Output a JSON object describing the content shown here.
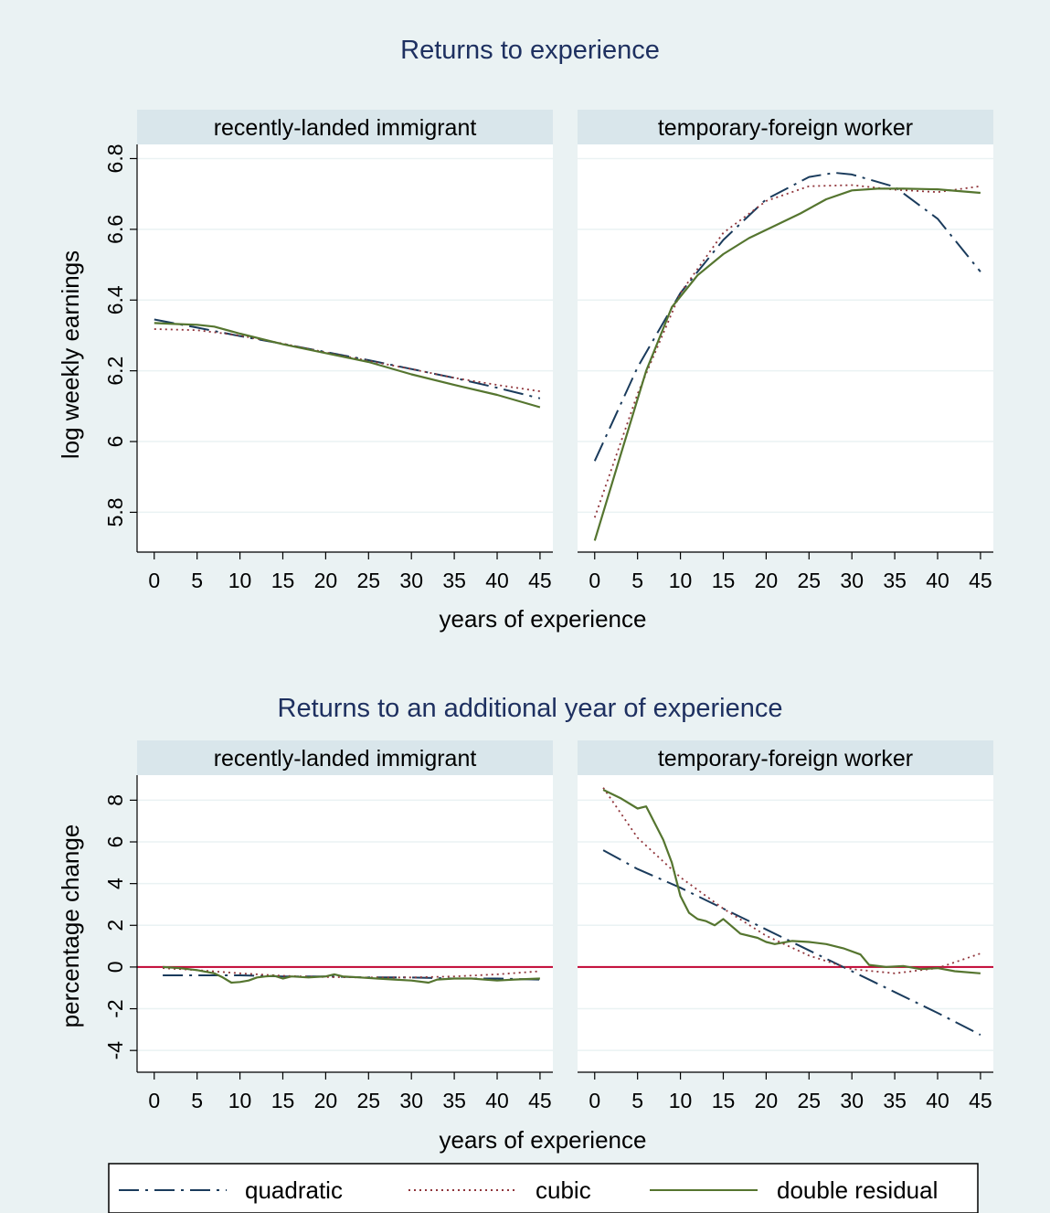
{
  "colors": {
    "background": "#eaf2f3",
    "plot_bg": "#ffffff",
    "strip_bg": "#d9e6eb",
    "grid": "#eaf2f3",
    "title_text": "#1e3060",
    "quadratic": "#1a3b5c",
    "cubic": "#90353b",
    "double_residual": "#55752f",
    "zero_line": "#c10534"
  },
  "legend": {
    "quadratic": "quadratic",
    "cubic": "cubic",
    "double_residual": "double residual"
  },
  "chart_data": [
    {
      "type": "line",
      "title": "Returns to experience",
      "ylabel": "log weekly earnings",
      "xlabel": "years of experience",
      "x_ticks": [
        0,
        5,
        10,
        15,
        20,
        25,
        30,
        35,
        40,
        45
      ],
      "y_ticks": [
        5.8,
        6,
        6.2,
        6.4,
        6.6,
        6.8
      ],
      "y_tick_labels": [
        "5.8",
        "6",
        "6.2",
        "6.4",
        "6.6",
        "6.8"
      ],
      "xlim": [
        -2,
        46.5
      ],
      "ylim": [
        5.69,
        6.84
      ],
      "grid": true,
      "panels": [
        {
          "name": "recently-landed immigrant",
          "series": [
            {
              "name": "quadratic",
              "x": [
                0,
                5,
                10,
                15,
                20,
                25,
                30,
                35,
                40,
                45
              ],
              "y": [
                6.345,
                6.322,
                6.298,
                6.276,
                6.253,
                6.23,
                6.205,
                6.18,
                6.152,
                6.122
              ]
            },
            {
              "name": "cubic",
              "x": [
                0,
                5,
                10,
                15,
                20,
                25,
                30,
                35,
                40,
                45
              ],
              "y": [
                6.318,
                6.315,
                6.3,
                6.277,
                6.252,
                6.228,
                6.205,
                6.18,
                6.16,
                6.142
              ]
            },
            {
              "name": "double residual",
              "x": [
                0,
                3,
                5,
                7,
                10,
                15,
                20,
                25,
                30,
                35,
                40,
                45
              ],
              "y": [
                6.335,
                6.332,
                6.33,
                6.325,
                6.305,
                6.275,
                6.25,
                6.225,
                6.19,
                6.16,
                6.132,
                6.097
              ]
            }
          ]
        },
        {
          "name": "temporary-foreign worker",
          "series": [
            {
              "name": "quadratic",
              "x": [
                0,
                5,
                10,
                15,
                20,
                25,
                28,
                30,
                35,
                40,
                45
              ],
              "y": [
                5.945,
                6.21,
                6.42,
                6.57,
                6.685,
                6.748,
                6.76,
                6.755,
                6.72,
                6.63,
                6.48
              ]
            },
            {
              "name": "cubic",
              "x": [
                0,
                5,
                10,
                15,
                20,
                25,
                30,
                35,
                40,
                45
              ],
              "y": [
                5.785,
                6.135,
                6.42,
                6.59,
                6.68,
                6.722,
                6.725,
                6.712,
                6.705,
                6.722
              ]
            },
            {
              "name": "double residual",
              "x": [
                0,
                3,
                6,
                9,
                12,
                15,
                18,
                21,
                24,
                27,
                30,
                33,
                36,
                40,
                45
              ],
              "y": [
                5.72,
                5.96,
                6.2,
                6.38,
                6.47,
                6.53,
                6.575,
                6.61,
                6.645,
                6.685,
                6.71,
                6.715,
                6.715,
                6.713,
                6.703
              ]
            }
          ]
        }
      ]
    },
    {
      "type": "line",
      "title": "Returns to an additional year of experience",
      "ylabel": "percentage change",
      "xlabel": "years of experience",
      "x_ticks": [
        0,
        5,
        10,
        15,
        20,
        25,
        30,
        35,
        40,
        45
      ],
      "y_ticks": [
        -4,
        -2,
        0,
        2,
        4,
        6,
        8
      ],
      "y_tick_labels": [
        "-4",
        "-2",
        "0",
        "2",
        "4",
        "6",
        "8"
      ],
      "xlim": [
        -2,
        46.5
      ],
      "ylim": [
        -5,
        9.2
      ],
      "grid": true,
      "reference_line": 0,
      "panels": [
        {
          "name": "recently-landed immigrant",
          "series": [
            {
              "name": "quadratic",
              "x": [
                1,
                5,
                10,
                15,
                20,
                25,
                30,
                35,
                40,
                45
              ],
              "y": [
                -0.4,
                -0.4,
                -0.4,
                -0.45,
                -0.45,
                -0.5,
                -0.5,
                -0.55,
                -0.55,
                -0.6
              ]
            },
            {
              "name": "cubic",
              "x": [
                1,
                5,
                10,
                15,
                20,
                25,
                30,
                35,
                40,
                45
              ],
              "y": [
                -0.05,
                -0.15,
                -0.3,
                -0.42,
                -0.48,
                -0.5,
                -0.5,
                -0.45,
                -0.35,
                -0.2
              ]
            },
            {
              "name": "double residual",
              "x": [
                1,
                3,
                5,
                7,
                8,
                9,
                10,
                11,
                12,
                13,
                14,
                15,
                16,
                18,
                20,
                21,
                22,
                24,
                26,
                28,
                30,
                32,
                33,
                35,
                37,
                40,
                42,
                45
              ],
              "y": [
                0,
                -0.05,
                -0.15,
                -0.3,
                -0.5,
                -0.75,
                -0.72,
                -0.65,
                -0.5,
                -0.45,
                -0.42,
                -0.55,
                -0.45,
                -0.5,
                -0.45,
                -0.35,
                -0.45,
                -0.5,
                -0.55,
                -0.6,
                -0.65,
                -0.75,
                -0.6,
                -0.55,
                -0.55,
                -0.65,
                -0.6,
                -0.55
              ]
            }
          ]
        },
        {
          "name": "temporary-foreign worker",
          "series": [
            {
              "name": "quadratic",
              "x": [
                1,
                5,
                10,
                15,
                20,
                25,
                30,
                35,
                40,
                45
              ],
              "y": [
                5.6,
                4.7,
                3.8,
                2.8,
                1.8,
                0.8,
                -0.2,
                -1.2,
                -2.2,
                -3.25
              ]
            },
            {
              "name": "cubic",
              "x": [
                1,
                5,
                10,
                15,
                20,
                25,
                30,
                35,
                40,
                45
              ],
              "y": [
                8.6,
                6.2,
                4.3,
                2.8,
                1.5,
                0.55,
                -0.1,
                -0.3,
                -0.05,
                0.65
              ]
            },
            {
              "name": "double residual",
              "x": [
                1,
                3,
                5,
                6,
                8,
                9,
                10,
                11,
                12,
                13,
                14,
                15,
                17,
                19,
                20,
                21,
                23,
                25,
                27,
                29,
                31,
                32,
                34,
                36,
                38,
                40,
                42,
                45
              ],
              "y": [
                8.5,
                8.1,
                7.6,
                7.7,
                6.1,
                5.0,
                3.4,
                2.6,
                2.3,
                2.2,
                2.0,
                2.3,
                1.6,
                1.4,
                1.2,
                1.1,
                1.25,
                1.2,
                1.1,
                0.9,
                0.6,
                0.1,
                0.0,
                0.05,
                -0.1,
                -0.05,
                -0.2,
                -0.3
              ]
            }
          ]
        }
      ]
    }
  ]
}
